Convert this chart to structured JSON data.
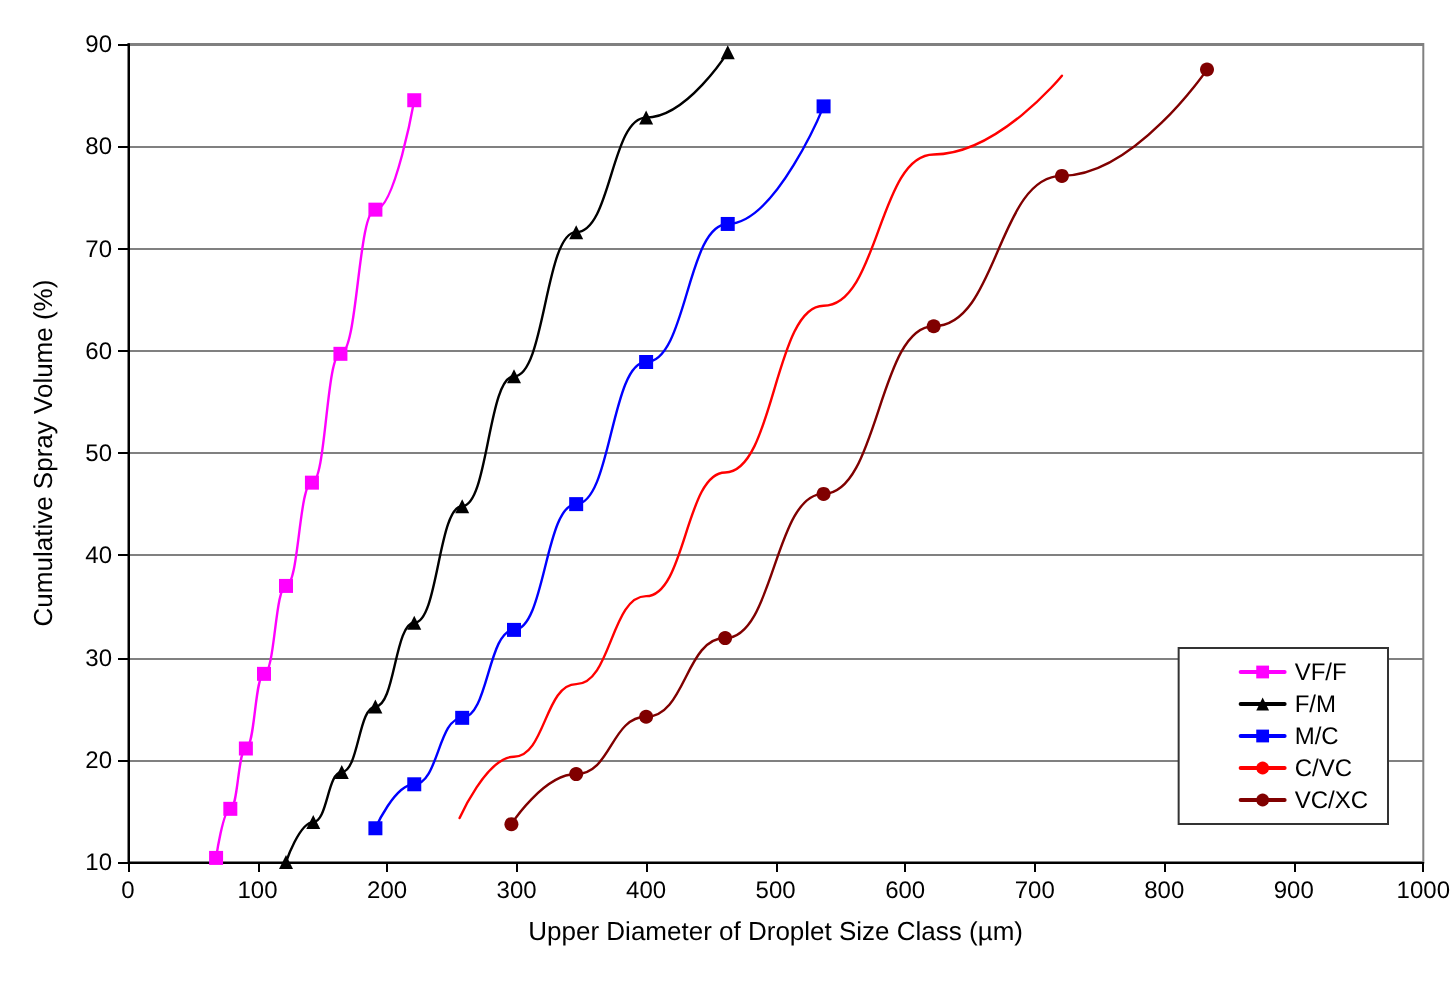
{
  "chart_data": {
    "type": "line",
    "xlabel": "Upper Diameter of Droplet Size Class (µm)",
    "ylabel": "Cumulative Spray Volume (%)",
    "xlim": [
      0,
      1000
    ],
    "xticks": [
      0,
      100,
      200,
      300,
      400,
      500,
      600,
      700,
      800,
      900,
      1000
    ],
    "ylim": [
      10,
      90
    ],
    "yticks": [
      10,
      20,
      30,
      40,
      50,
      60,
      70,
      80,
      90
    ],
    "grid": "y",
    "legend": "bottom right",
    "series": [
      {
        "name": "VF/F",
        "color": "#ff00ff",
        "marker": "square",
        "x": [
          68,
          79,
          91,
          105,
          122,
          142,
          164,
          191,
          221
        ],
        "values": [
          10.4,
          15.2,
          21.1,
          28.4,
          37.0,
          47.1,
          59.7,
          73.8,
          84.5
        ]
      },
      {
        "name": "F/M",
        "color": "#000000",
        "marker": "triangle",
        "x": [
          122,
          143,
          165,
          191,
          221,
          258,
          298,
          346,
          400,
          463
        ],
        "values": [
          10,
          13.9,
          18.8,
          25.2,
          33.4,
          44.8,
          57.5,
          71.6,
          82.8,
          89.2
        ]
      },
      {
        "name": "M/C",
        "color": "#0000ff",
        "marker": "square",
        "x": [
          191,
          221,
          258,
          298,
          346,
          400,
          463,
          537
        ],
        "values": [
          13.3,
          17.6,
          24.1,
          32.7,
          45.0,
          58.9,
          72.4,
          83.9
        ]
      },
      {
        "name": "C/VC",
        "color": "#ff0000",
        "marker": "none",
        "x": [
          256,
          298,
          346,
          400,
          461,
          537,
          622,
          721
        ],
        "values": [
          14.3,
          20.3,
          27.4,
          36.0,
          48.1,
          64.4,
          79.2,
          86.9
        ]
      },
      {
        "name": "VC/XC",
        "color": "#800000",
        "marker": "circle",
        "x": [
          296,
          346,
          400,
          461,
          537,
          622,
          721,
          833
        ],
        "values": [
          13.7,
          18.6,
          24.2,
          31.9,
          46.0,
          62.4,
          77.1,
          87.5
        ]
      }
    ]
  }
}
